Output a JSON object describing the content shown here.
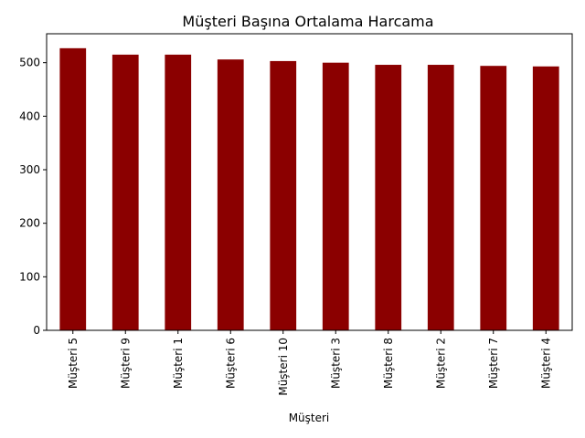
{
  "chart_data": {
    "type": "bar",
    "title": "Müşteri Başına Ortalama Harcama",
    "xlabel": "Müşteri",
    "ylabel": "",
    "categories": [
      "Müşteri 5",
      "Müşteri 9",
      "Müşteri 1",
      "Müşteri 6",
      "Müşteri 10",
      "Müşteri 3",
      "Müşteri 8",
      "Müşteri 2",
      "Müşteri 7",
      "Müşteri 4"
    ],
    "values": [
      527,
      515,
      515,
      506,
      503,
      500,
      496,
      496,
      494,
      493
    ],
    "ylim": [
      0,
      554
    ],
    "yticks": [
      0,
      100,
      200,
      300,
      400,
      500
    ],
    "grid": false,
    "legend": "none",
    "bar_color": "#8b0000",
    "x_tick_rotation": "vertical"
  }
}
